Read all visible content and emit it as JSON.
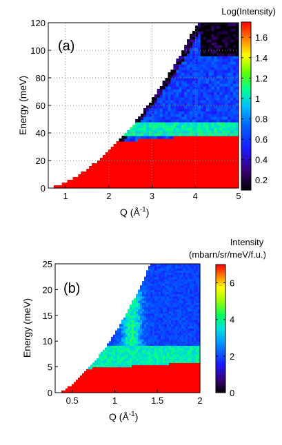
{
  "chart_data": [
    {
      "type": "heatmap",
      "panel_label": "(a)",
      "xlabel": "Q (Å",
      "xlabel_sup": "-1",
      "xlabel_close": ")",
      "ylabel": "Energy (meV)",
      "xlim": [
        0.6,
        5
      ],
      "ylim": [
        0,
        120
      ],
      "xticks": [
        "1",
        "2",
        "3",
        "4",
        "5"
      ],
      "yticks": [
        "0",
        "20",
        "40",
        "60",
        "80",
        "100",
        "120"
      ],
      "grid": true,
      "colorbar": {
        "title": "Log(Intensity)",
        "range": [
          0.1,
          1.75
        ],
        "ticks": [
          "0.2",
          "0.4",
          "0.6",
          "0.8",
          "1",
          "1.2",
          "1.4",
          "1.6"
        ]
      },
      "kinematic_limit": {
        "q_min": 0.63,
        "q_top": 4.05,
        "e_top": 120
      },
      "features": {
        "elastic_band_edge_meV": [
          [
            0.63,
            13
          ],
          [
            1.0,
            22
          ],
          [
            1.5,
            28
          ],
          [
            2.0,
            33
          ],
          [
            3.0,
            36
          ],
          [
            4.0,
            38
          ],
          [
            5.0,
            39
          ]
        ],
        "elastic_value": 1.75,
        "green_band_meV": [
          38,
          47
        ],
        "green_value": 1.05,
        "low_q_feature_value": 1.4,
        "high_energy_value": 0.6
      }
    },
    {
      "type": "heatmap",
      "panel_label": "(b)",
      "xlabel": "Q (Å",
      "xlabel_sup": "-1",
      "xlabel_close": ")",
      "ylabel": "Energy (meV)",
      "xlim": [
        0.3,
        2
      ],
      "ylim": [
        0,
        25
      ],
      "xticks": [
        "0.5",
        "1",
        "1.5",
        "2"
      ],
      "yticks": [
        "0",
        "5",
        "10",
        "15",
        "20",
        "25"
      ],
      "grid": false,
      "colorbar": {
        "title_line1": "Intensity",
        "title_line2": "(mbarn/sr/meV/f.u.)",
        "range": [
          0,
          7
        ],
        "ticks": [
          "0",
          "2",
          "4",
          "6"
        ]
      },
      "kinematic_limit": {
        "q_min": 0.35,
        "q_top": 1.42,
        "e_top": 25
      },
      "features": {
        "elastic_band_edge_meV": [
          [
            0.35,
            4.5
          ],
          [
            1.0,
            5.0
          ],
          [
            2.0,
            6.0
          ]
        ],
        "elastic_value": 7,
        "green_band_meV": [
          5.5,
          9
        ],
        "green_value": 4,
        "ridge_q": 1.2,
        "ridge_value": 4.2,
        "high_energy_value": 2.2
      }
    }
  ]
}
